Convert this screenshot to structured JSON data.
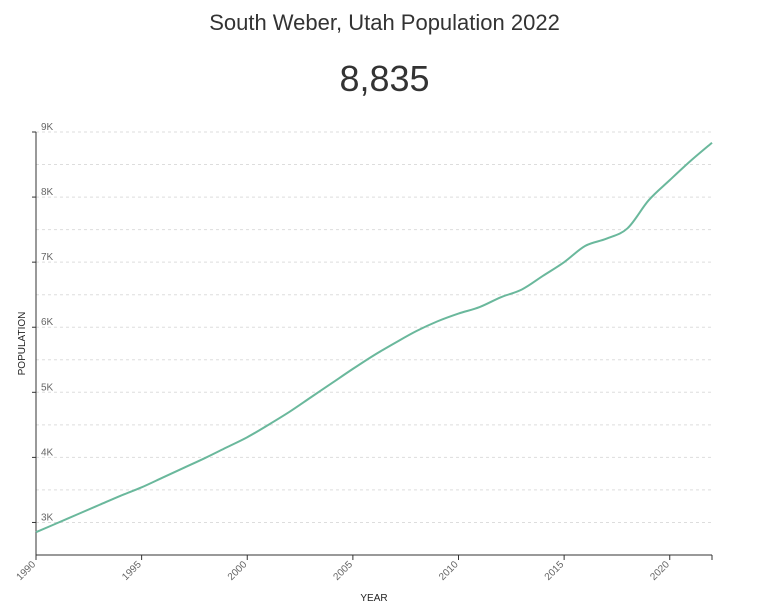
{
  "title": "South Weber, Utah Population 2022",
  "headline_value": "8,835",
  "colors": {
    "line": "#6ab89c",
    "grid": "#dddddd",
    "axis": "#333333"
  },
  "chart_data": {
    "type": "line",
    "xlabel": "YEAR",
    "ylabel": "POPULATION",
    "xlim": [
      1990,
      2022
    ],
    "ylim": [
      2500,
      9000
    ],
    "x_ticks": [
      1990,
      1995,
      2000,
      2005,
      2010,
      2015,
      2020
    ],
    "x_tick_labels": [
      "1990",
      "1995",
      "2000",
      "2005",
      "2010",
      "2015",
      "2020"
    ],
    "y_ticks": [
      3000,
      4000,
      5000,
      6000,
      7000,
      8000,
      9000
    ],
    "y_tick_labels": [
      "3K",
      "4K",
      "5K",
      "6K",
      "7K",
      "8K",
      "9K"
    ],
    "grid": true,
    "x": [
      1990,
      1991,
      1992,
      1993,
      1994,
      1995,
      1996,
      1997,
      1998,
      1999,
      2000,
      2001,
      2002,
      2003,
      2004,
      2005,
      2006,
      2007,
      2008,
      2009,
      2010,
      2011,
      2012,
      2013,
      2014,
      2015,
      2016,
      2017,
      2018,
      2019,
      2020,
      2021,
      2022
    ],
    "values": [
      2850,
      2990,
      3130,
      3270,
      3410,
      3540,
      3690,
      3840,
      3990,
      4150,
      4310,
      4500,
      4700,
      4920,
      5140,
      5360,
      5570,
      5760,
      5940,
      6090,
      6210,
      6310,
      6460,
      6580,
      6790,
      7000,
      7250,
      7360,
      7520,
      7950,
      8260,
      8560,
      8835
    ]
  }
}
